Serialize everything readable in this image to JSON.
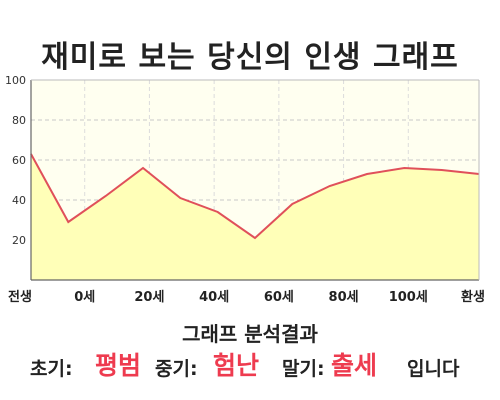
{
  "title": "재미로 보는 당신의 인생 그래프",
  "chart_data": {
    "type": "area",
    "x_labels": [
      "전생",
      "0세",
      "20세",
      "40세",
      "60세",
      "80세",
      "100세",
      "환생"
    ],
    "y_ticks": [
      20,
      40,
      60,
      80,
      100
    ],
    "ylim": [
      0,
      100
    ],
    "grid": true,
    "fill_color": "#ffffb8",
    "line_color": "#e0505a",
    "plot_bg": "#fffff0",
    "series": [
      {
        "values": [
          63,
          29,
          42,
          56,
          41,
          34,
          21,
          38,
          47,
          53,
          56,
          55,
          53
        ]
      }
    ]
  },
  "result": {
    "heading": "그래프 분석결과",
    "early_label": "초기:",
    "early_value": "평범",
    "middle_label": "중기:",
    "middle_value": "험난",
    "late_label": "말기:",
    "late_value": "출세",
    "suffix": "입니다"
  }
}
